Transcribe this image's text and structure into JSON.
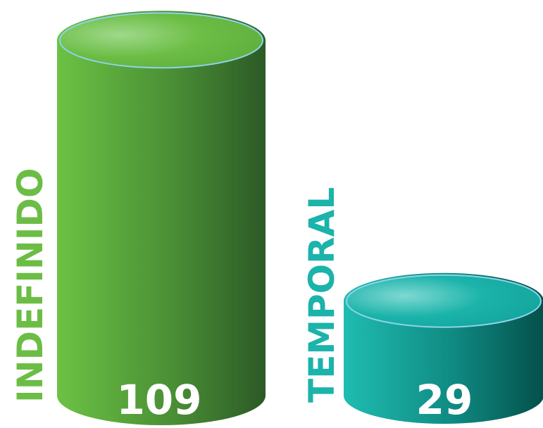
{
  "chart_data": {
    "type": "bar",
    "style": "3d-cylinder",
    "categories": [
      "INDEFINIDO",
      "TEMPORAL"
    ],
    "values": [
      109,
      29
    ],
    "colors": [
      "#6cbd45",
      "#1bb3aa"
    ],
    "grid": false,
    "legend": "none"
  }
}
